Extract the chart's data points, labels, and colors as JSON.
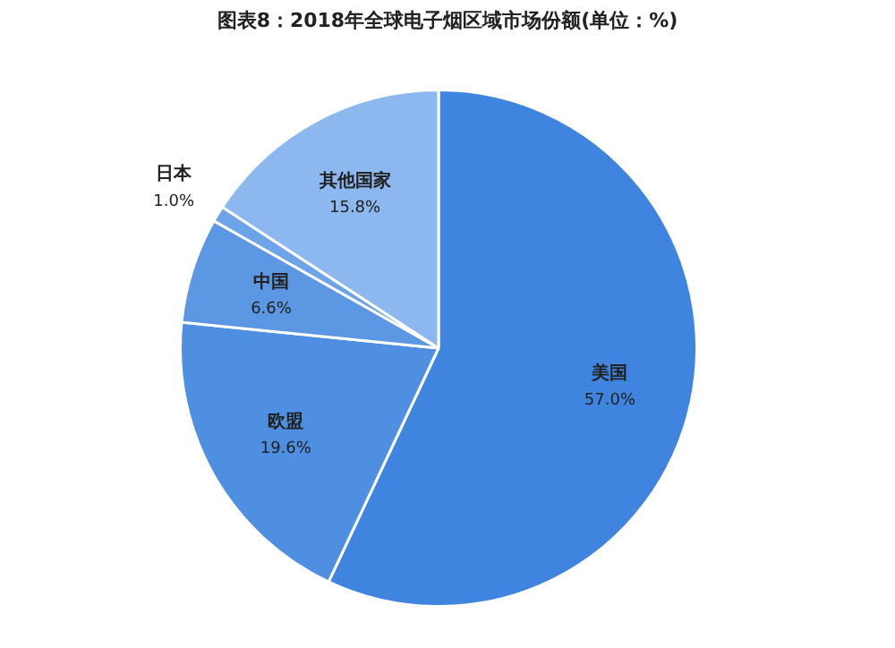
{
  "chart_data": {
    "type": "pie",
    "title": "图表8：2018年全球电子烟区域市场份额(单位：%)",
    "categories": [
      "美国",
      "欧盟",
      "中国",
      "日本",
      "其他国家"
    ],
    "values": [
      57.0,
      19.6,
      6.6,
      1.0,
      15.8
    ],
    "value_labels": [
      "57.0%",
      "19.6%",
      "6.6%",
      "1.0%",
      "15.8%"
    ],
    "colors": [
      "#3f85e0",
      "#4e8fe2",
      "#5b97e3",
      "#6da3e8",
      "#8cb8ef"
    ],
    "legend": false
  }
}
